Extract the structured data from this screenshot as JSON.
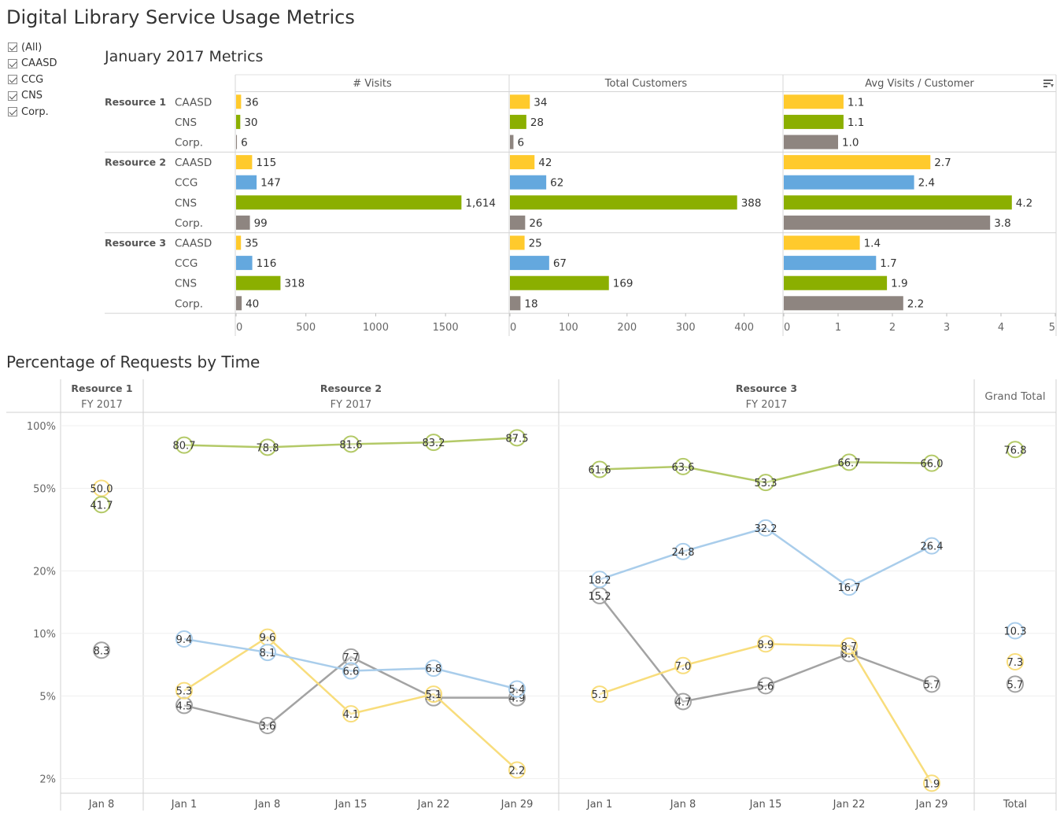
{
  "dashboard_title": "Digital Library Service Usage Metrics",
  "filter": {
    "items": [
      {
        "label": "(All)",
        "checked": true
      },
      {
        "label": "CAASD",
        "checked": true
      },
      {
        "label": "CCG",
        "checked": true
      },
      {
        "label": "CNS",
        "checked": true
      },
      {
        "label": "Corp.",
        "checked": true
      }
    ]
  },
  "colors": {
    "CAASD": "#FFCA2C",
    "CCG": "#64A8DE",
    "CNS": "#8BAF00",
    "Corp.": "#8E8580"
  },
  "line_colors": {
    "CAASD": "#F8DD7C",
    "CCG": "#A9CDEB",
    "CNS": "#B3C967",
    "Corp.": "#A3A3A3"
  },
  "sort_icon": "sort-descending-icon",
  "chart_data": [
    {
      "type": "bar",
      "title": "January 2017 Metrics",
      "orientation": "horizontal",
      "row_groups": [
        {
          "name": "Resource 1",
          "rows": [
            "CAASD",
            "CNS",
            "Corp."
          ]
        },
        {
          "name": "Resource 2",
          "rows": [
            "CAASD",
            "CCG",
            "CNS",
            "Corp."
          ]
        },
        {
          "name": "Resource 3",
          "rows": [
            "CAASD",
            "CCG",
            "CNS",
            "Corp."
          ]
        }
      ],
      "measures": [
        {
          "name": "# Visits",
          "xlim": [
            0,
            1950
          ],
          "ticks": [
            0,
            500,
            1000,
            1500
          ],
          "tick_labels": [
            "0",
            "500",
            "1000",
            "1500"
          ],
          "values": [
            36,
            30,
            6,
            115,
            147,
            1614,
            99,
            35,
            116,
            318,
            40
          ],
          "labels": [
            "36",
            "30",
            "6",
            "115",
            "147",
            "1,614",
            "99",
            "35",
            "116",
            "318",
            "40"
          ]
        },
        {
          "name": "Total Customers",
          "xlim": [
            0,
            465
          ],
          "ticks": [
            0,
            100,
            200,
            300,
            400
          ],
          "tick_labels": [
            "0",
            "100",
            "200",
            "300",
            "400"
          ],
          "values": [
            34,
            28,
            6,
            42,
            62,
            388,
            26,
            25,
            67,
            169,
            18
          ],
          "labels": [
            "34",
            "28",
            "6",
            "42",
            "62",
            "388",
            "26",
            "25",
            "67",
            "169",
            "18"
          ]
        },
        {
          "name": "Avg Visits / Customer",
          "xlim": [
            0,
            5
          ],
          "ticks": [
            0,
            1,
            2,
            3,
            4,
            5
          ],
          "tick_labels": [
            "0",
            "1",
            "2",
            "3",
            "4",
            "5"
          ],
          "values": [
            1.1,
            1.1,
            1.0,
            2.7,
            2.4,
            4.2,
            3.8,
            1.4,
            1.7,
            1.9,
            2.2
          ],
          "labels": [
            "1.1",
            "1.1",
            "1.0",
            "2.7",
            "2.4",
            "4.2",
            "3.8",
            "1.4",
            "1.7",
            "1.9",
            "2.2"
          ]
        }
      ]
    },
    {
      "type": "line",
      "title": "Percentage of Requests by Time",
      "y_scale": "log",
      "ylim": [
        1.7,
        116
      ],
      "y_ticks": [
        2,
        5,
        10,
        20,
        50,
        100
      ],
      "y_tick_labels": [
        "2%",
        "5%",
        "10%",
        "20%",
        "50%",
        "100%"
      ],
      "panes": [
        {
          "header": "Resource 1",
          "subheader": "FY 2017",
          "x": [
            "Jan 8"
          ],
          "series": [
            {
              "group": "CAASD",
              "values": [
                50.0
              ],
              "labels": [
                "50.0"
              ]
            },
            {
              "group": "CNS",
              "values": [
                41.7
              ],
              "labels": [
                "41.7"
              ]
            },
            {
              "group": "Corp.",
              "values": [
                8.3
              ],
              "labels": [
                "8.3"
              ]
            }
          ]
        },
        {
          "header": "Resource 2",
          "subheader": "FY 2017",
          "x": [
            "Jan 1",
            "Jan 8",
            "Jan 15",
            "Jan 22",
            "Jan 29"
          ],
          "series": [
            {
              "group": "CNS",
              "values": [
                80.7,
                78.8,
                81.6,
                83.2,
                87.5
              ],
              "labels": [
                "80.7",
                "78.8",
                "81.6",
                "83.2",
                "87.5"
              ]
            },
            {
              "group": "CCG",
              "values": [
                9.4,
                8.1,
                6.6,
                6.8,
                5.4
              ],
              "labels": [
                "9.4",
                "8.1",
                "6.6",
                "6.8",
                "5.4"
              ]
            },
            {
              "group": "CAASD",
              "values": [
                5.3,
                9.6,
                4.1,
                5.1,
                2.2
              ],
              "labels": [
                "5.3",
                "9.6",
                "4.1",
                "5.1",
                "2.2"
              ]
            },
            {
              "group": "Corp.",
              "values": [
                4.5,
                3.6,
                7.7,
                4.9,
                4.9
              ],
              "labels": [
                "4.5",
                "3.6",
                "7.7",
                "4.9",
                "4.9"
              ]
            }
          ]
        },
        {
          "header": "Resource 3",
          "subheader": "FY 2017",
          "x": [
            "Jan 1",
            "Jan 8",
            "Jan 15",
            "Jan 22",
            "Jan 29"
          ],
          "series": [
            {
              "group": "CNS",
              "values": [
                61.6,
                63.6,
                53.3,
                66.7,
                66.0
              ],
              "labels": [
                "61.6",
                "63.6",
                "53.3",
                "66.7",
                "66.0"
              ]
            },
            {
              "group": "CCG",
              "values": [
                18.2,
                24.8,
                32.2,
                16.7,
                26.4
              ],
              "labels": [
                "18.2",
                "24.8",
                "32.2",
                "16.7",
                "26.4"
              ]
            },
            {
              "group": "CAASD",
              "values": [
                5.1,
                7.0,
                8.9,
                8.7,
                1.9
              ],
              "labels": [
                "5.1",
                "7.0",
                "8.9",
                "8.7",
                "1.9"
              ]
            },
            {
              "group": "Corp.",
              "values": [
                15.2,
                4.7,
                5.6,
                8.0,
                5.7
              ],
              "labels": [
                "15.2",
                "4.7",
                "5.6",
                "8.0",
                "5.7"
              ]
            }
          ]
        },
        {
          "header": "Grand Total",
          "subheader": "",
          "x": [
            "Total"
          ],
          "series": [
            {
              "group": "CNS",
              "values": [
                76.8
              ],
              "labels": [
                "76.8"
              ]
            },
            {
              "group": "CCG",
              "values": [
                10.3
              ],
              "labels": [
                "10.3"
              ]
            },
            {
              "group": "CAASD",
              "values": [
                7.3
              ],
              "labels": [
                "7.3"
              ]
            },
            {
              "group": "Corp.",
              "values": [
                5.7
              ],
              "labels": [
                "5.7"
              ]
            }
          ]
        }
      ]
    }
  ]
}
